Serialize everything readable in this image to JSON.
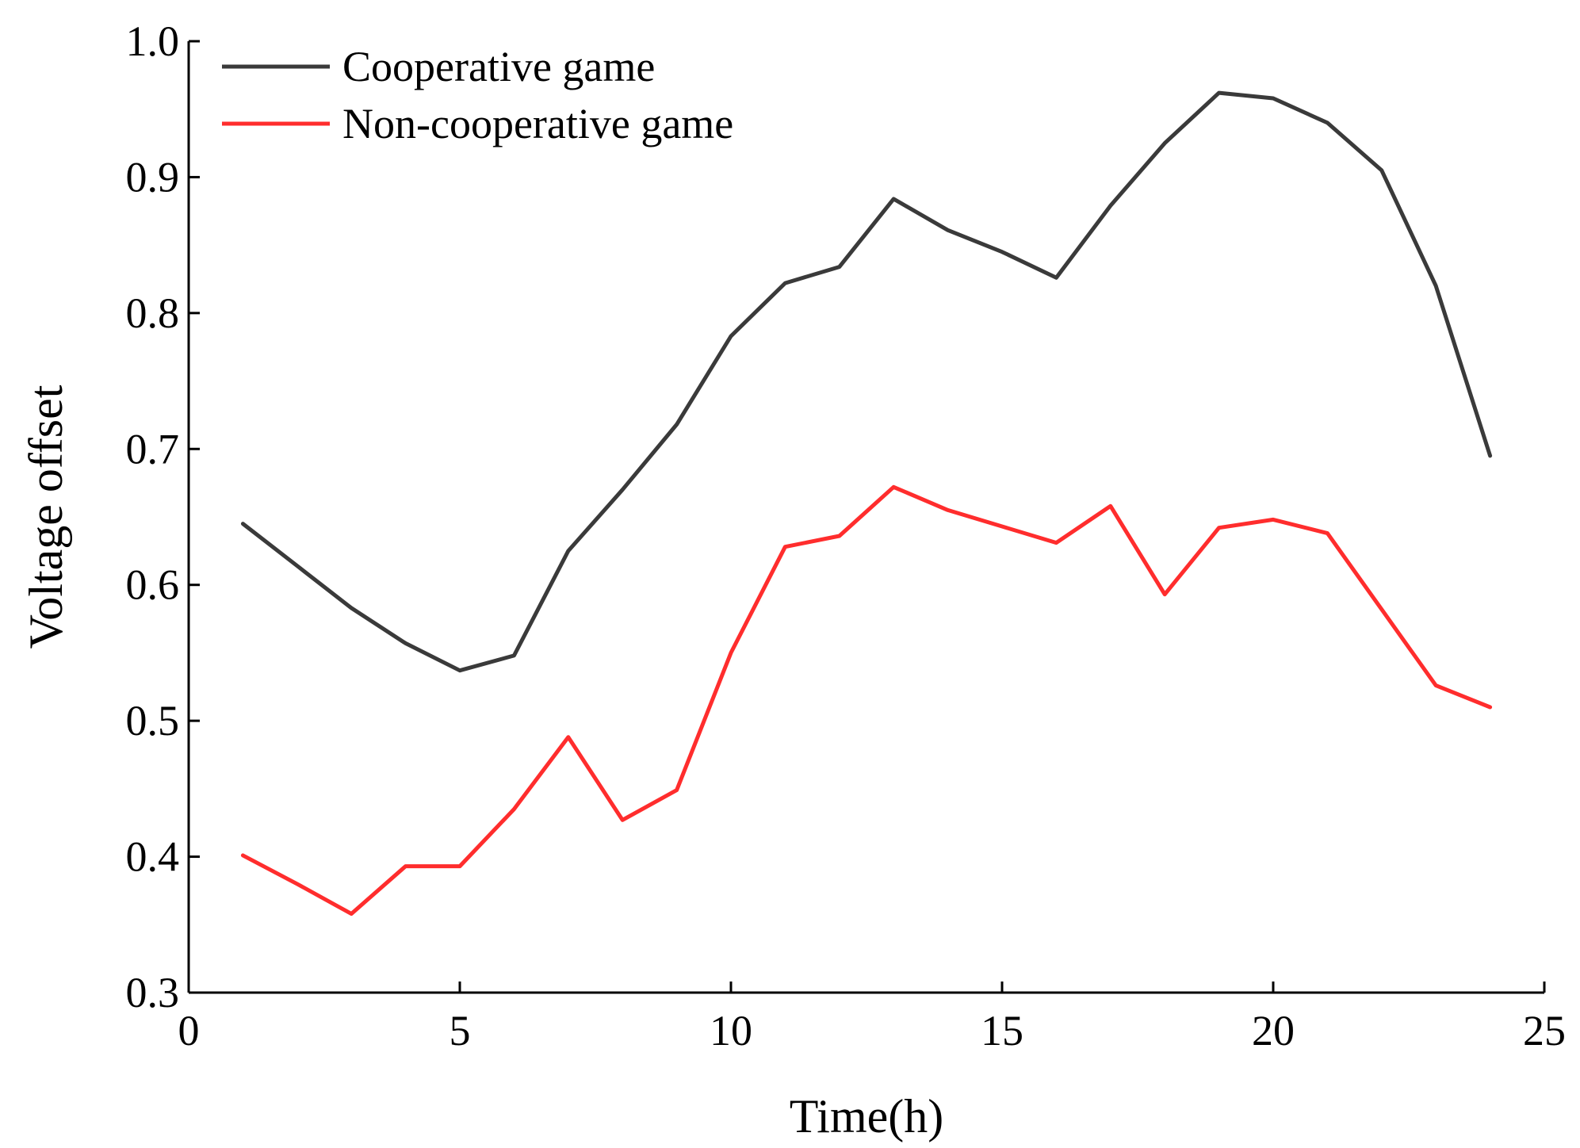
{
  "chart_data": {
    "type": "line",
    "xlabel": "Time(h)",
    "ylabel": "Voltage offset",
    "xlim": [
      0,
      25
    ],
    "ylim": [
      0.3,
      1.0
    ],
    "xticks": [
      0,
      5,
      10,
      15,
      20,
      25
    ],
    "xtick_labels": [
      "0",
      "5",
      "10",
      "15",
      "20",
      "25"
    ],
    "yticks": [
      0.3,
      0.4,
      0.5,
      0.6,
      0.7,
      0.8,
      0.9,
      1.0
    ],
    "ytick_labels": [
      "0.3",
      "0.4",
      "0.5",
      "0.6",
      "0.7",
      "0.8",
      "0.9",
      "1.0"
    ],
    "grid": false,
    "legend_position": "top-left",
    "x": [
      1,
      2,
      3,
      4,
      5,
      6,
      7,
      8,
      9,
      10,
      11,
      12,
      13,
      14,
      15,
      16,
      17,
      18,
      19,
      20,
      21,
      22,
      23,
      24
    ],
    "series": [
      {
        "name": "Cooperative game",
        "color": "#3a3a3a",
        "values": [
          0.645,
          0.614,
          0.583,
          0.557,
          0.537,
          0.548,
          0.625,
          0.67,
          0.718,
          0.783,
          0.822,
          0.834,
          0.884,
          0.861,
          0.845,
          0.826,
          0.879,
          0.925,
          0.962,
          0.958,
          0.94,
          0.905,
          0.82,
          0.695
        ]
      },
      {
        "name": "Non-cooperative game",
        "color": "#ff2d2d",
        "values": [
          0.401,
          0.38,
          0.358,
          0.393,
          0.393,
          0.435,
          0.488,
          0.427,
          0.449,
          0.55,
          0.628,
          0.636,
          0.672,
          0.655,
          0.643,
          0.631,
          0.658,
          0.593,
          0.642,
          0.648,
          0.638,
          0.582,
          0.526,
          0.51
        ]
      }
    ]
  }
}
